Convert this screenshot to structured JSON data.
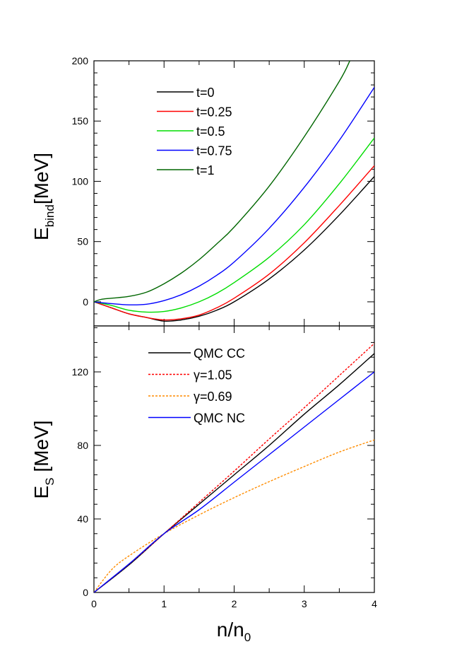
{
  "chart_data": [
    {
      "type": "line",
      "panel": "top",
      "xlabel": "n/n0",
      "ylabel": "E_bind[MeV]",
      "ylabel_main": "E",
      "ylabel_sub": "bind",
      "ylabel_rest": "[MeV]",
      "xlim": [
        0,
        4
      ],
      "ylim": [
        -20,
        200
      ],
      "yticks": [
        0,
        50,
        100,
        150,
        200
      ],
      "ytick_labels": [
        "0",
        "50",
        "100",
        "150",
        "200"
      ],
      "legend_position": "top-left",
      "series": [
        {
          "name": "t=0",
          "color": "#000000",
          "style": "solid",
          "x": [
            0,
            0.25,
            0.5,
            0.75,
            1.0,
            1.25,
            1.5,
            1.75,
            2.0,
            2.5,
            3.0,
            3.5,
            4.0
          ],
          "y": [
            0,
            -5,
            -10,
            -13,
            -16,
            -15,
            -12,
            -7,
            0,
            19,
            43,
            72,
            104
          ]
        },
        {
          "name": "t=0.25",
          "color": "#ff0000",
          "style": "solid",
          "x": [
            0,
            0.25,
            0.5,
            0.75,
            1.0,
            1.25,
            1.5,
            1.75,
            2.0,
            2.5,
            3.0,
            3.5,
            4.0
          ],
          "y": [
            0,
            -5,
            -10,
            -13,
            -15,
            -14,
            -11,
            -5,
            3,
            23,
            49,
            80,
            113
          ]
        },
        {
          "name": "t=0.5",
          "color": "#00dd00",
          "style": "solid",
          "x": [
            0,
            0.25,
            0.5,
            0.75,
            1.0,
            1.25,
            1.5,
            1.75,
            2.0,
            2.5,
            3.0,
            3.5,
            4.0
          ],
          "y": [
            0,
            -3,
            -7,
            -8.5,
            -8,
            -5,
            0,
            7,
            16,
            37,
            64,
            98,
            136
          ]
        },
        {
          "name": "t=0.75",
          "color": "#0000ff",
          "style": "solid",
          "x": [
            0,
            0.25,
            0.5,
            0.75,
            1.0,
            1.25,
            1.5,
            1.75,
            2.0,
            2.5,
            3.0,
            3.5,
            4.0
          ],
          "y": [
            0,
            -1.5,
            -2.5,
            -2,
            1,
            6,
            13,
            22,
            33,
            61,
            95,
            134,
            178
          ]
        },
        {
          "name": "t=1",
          "color": "#006600",
          "style": "solid",
          "x": [
            0,
            0.1,
            0.25,
            0.5,
            0.75,
            1.0,
            1.25,
            1.5,
            1.75,
            2.0,
            2.5,
            3.0,
            3.5,
            3.65
          ],
          "y": [
            0,
            2,
            3,
            4.5,
            8,
            15,
            24,
            35,
            48,
            62,
            96,
            137,
            183,
            200
          ]
        }
      ]
    },
    {
      "type": "line",
      "panel": "bottom",
      "xlabel": "n/n0",
      "xlabel_main": "n/n",
      "xlabel_sub": "0",
      "ylabel": "E_S [MeV]",
      "ylabel_main": "E",
      "ylabel_sub": "S",
      "ylabel_rest": " [MeV]",
      "xlim": [
        0,
        4
      ],
      "ylim": [
        0,
        145
      ],
      "xticks": [
        0,
        1,
        2,
        3,
        4
      ],
      "xtick_labels": [
        "0",
        "1",
        "2",
        "3",
        "4"
      ],
      "yticks": [
        0,
        40,
        80,
        120
      ],
      "ytick_labels": [
        "0",
        "40",
        "80",
        "120"
      ],
      "legend_position": "top-left",
      "series": [
        {
          "name": "QMC CC",
          "color": "#000000",
          "style": "solid",
          "x": [
            0,
            0.5,
            1.0,
            1.5,
            2.0,
            2.5,
            3.0,
            3.5,
            4.0
          ],
          "y": [
            0,
            15,
            32,
            48,
            64,
            80,
            97,
            113,
            130
          ]
        },
        {
          "name": "γ=1.05",
          "color": "#ff0000",
          "style": "dashed",
          "x": [
            0,
            0.5,
            1.0,
            1.5,
            2.0,
            2.5,
            3.0,
            3.5,
            4.0
          ],
          "y": [
            0,
            15.4,
            32,
            49,
            66,
            83.5,
            100.5,
            118,
            135.5
          ]
        },
        {
          "name": "γ=0.69",
          "color": "#ff8c00",
          "style": "dashed",
          "x": [
            0,
            0.25,
            0.5,
            1.0,
            1.5,
            2.0,
            2.5,
            3.0,
            3.5,
            4.0
          ],
          "y": [
            0,
            12.3,
            19.9,
            32,
            42.2,
            51.6,
            60.3,
            68.5,
            76.4,
            83
          ]
        },
        {
          "name": "QMC NC",
          "color": "#0000ff",
          "style": "solid",
          "x": [
            0,
            0.5,
            1.0,
            1.5,
            2.0,
            2.5,
            3.0,
            3.5,
            4.0
          ],
          "y": [
            0,
            15.5,
            32,
            45,
            60,
            75,
            90,
            105,
            120
          ]
        }
      ]
    }
  ]
}
